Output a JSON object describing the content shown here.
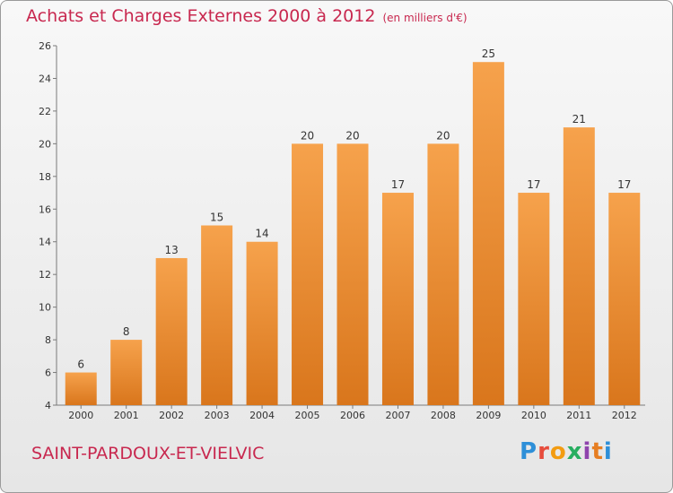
{
  "title": "Achats et Charges Externes 2000 à 2012",
  "unit": "(en milliers d'€)",
  "city": "SAINT-PARDOUX-ET-VIELVIC",
  "logo": {
    "text": "Proxiti",
    "colors": [
      "#2e8fd8",
      "#e74c3c",
      "#f39c12",
      "#27ae60",
      "#8e44ad",
      "#e67e22",
      "#2e8fd8"
    ]
  },
  "colors": {
    "accent": "#c8284f",
    "bar_light": "#f6a24c",
    "bar_dark": "#d9761c"
  },
  "chart_data": {
    "type": "bar",
    "categories": [
      "2000",
      "2001",
      "2002",
      "2003",
      "2004",
      "2005",
      "2006",
      "2007",
      "2008",
      "2009",
      "2010",
      "2011",
      "2012"
    ],
    "values": [
      6,
      8,
      13,
      15,
      14,
      20,
      20,
      17,
      20,
      25,
      17,
      21,
      17
    ],
    "ylim": [
      4,
      26
    ],
    "yticks": [
      4,
      6,
      8,
      10,
      12,
      14,
      16,
      18,
      20,
      22,
      24,
      26
    ],
    "grid": false,
    "legend": "none",
    "xlabel": "",
    "ylabel": ""
  }
}
